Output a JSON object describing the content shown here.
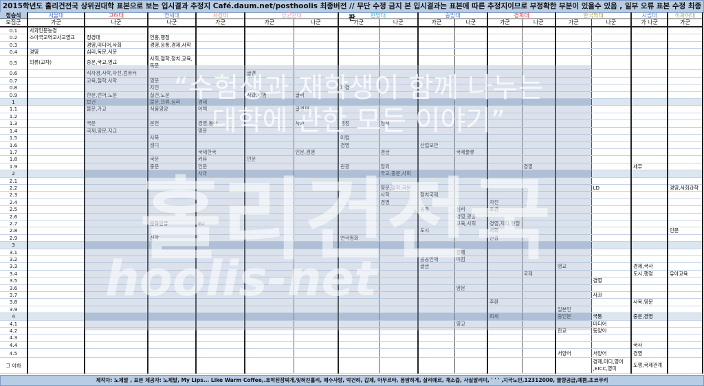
{
  "title": "2015학년도 홀리건전국 상위권대학 표본으로 보는 입시결과 추정지  Café.daum.net/posthoolis 최종버전 // 무단 수정 금지 본 입시결과는 표본에 따른 추정지이므로 부정확한 부분이 있을수 있음 , 일부 오류 표본 수정 최종판",
  "score_header": "정승식",
  "group_header": "모집군",
  "universities": [
    {
      "name": "서울대",
      "color": "#3a6ed0",
      "span": 1
    },
    {
      "name": "고려대",
      "color": "#e02828",
      "span": 1
    },
    {
      "name": "연세대",
      "color": "#5a78b0",
      "span": 1
    },
    {
      "name": "서강대",
      "color": "#f0884c",
      "span": 1
    },
    {
      "name": "성균관대",
      "color": "#f49aa8",
      "span": 2
    },
    {
      "name": "한양대",
      "color": "#40a8d8",
      "span": 2
    },
    {
      "name": "중앙대",
      "color": "#3c74d4",
      "span": 2
    },
    {
      "name": "경희대",
      "color": "#e02828",
      "span": 2
    },
    {
      "name": "한국외대",
      "color": "#a8a048",
      "span": 2
    },
    {
      "name": "시립대",
      "color": "#5a84c4",
      "span": 1
    },
    {
      "name": "이화여대",
      "color": "#88b868",
      "span": 1
    }
  ],
  "columns": [
    {
      "id": "snu",
      "group": "가군"
    },
    {
      "id": "ku",
      "group": "나군"
    },
    {
      "id": "yon",
      "group": "나군"
    },
    {
      "id": "sg",
      "group": "가군"
    },
    {
      "id": "skku_ga",
      "group": "가군"
    },
    {
      "id": "skku_na",
      "group": "나군"
    },
    {
      "id": "hy_ga",
      "group": "가군"
    },
    {
      "id": "hy_na",
      "group": "나군"
    },
    {
      "id": "ca_ga",
      "group": "가군"
    },
    {
      "id": "ca_na",
      "group": "나군"
    },
    {
      "id": "kh_ga",
      "group": "가군"
    },
    {
      "id": "kh_na",
      "group": "나군"
    },
    {
      "id": "hufs_ga",
      "group": "가군"
    },
    {
      "id": "hufs_na",
      "group": "나군"
    },
    {
      "id": "uos",
      "group": "가 나군"
    },
    {
      "id": "ewha",
      "group": "가군"
    }
  ],
  "rows": [
    {
      "label": "0.1",
      "cells": {
        "snu": "사과인문농경"
      }
    },
    {
      "label": "0.2",
      "cells": {
        "snu": "소아국교역교사교영교",
        "ku": "정경대",
        "yon": "언홍,행정"
      }
    },
    {
      "label": "0.3",
      "cells": {
        "ku": "경영,미디어,사회",
        "yon": "경영,응통,경제,사학"
      }
    },
    {
      "label": "0.4",
      "cells": {
        "snu": "경영",
        "ku": "심리,독문,서문"
      }
    },
    {
      "label": "0.5",
      "cells": {
        "snu": "의류(교차)",
        "ku": "중문,국교,영교",
        "yon": "사회,철학,정치,교육, 독문"
      }
    },
    {
      "label": "0.6",
      "cells": {
        "ku": "식자경,사학,자전,컴퓨터",
        "skku_ga": "글경"
      }
    },
    {
      "label": "0.7",
      "cells": {
        "ku": "교육,철학,사학",
        "yon": "영문"
      }
    },
    {
      "label": "0.8",
      "cells": {
        "yon": "자전",
        "hy_ga": "파경"
      }
    },
    {
      "label": "0.9",
      "cells": {
        "ku": "한문,언어,노문",
        "yon": "실건,노문",
        "skku_ga": "사과,경영",
        "skku_na": "글리"
      }
    },
    {
      "label": "1",
      "cells": {
        "ku": "보건",
        "yon": "불문,의류,심리",
        "sg": "경제"
      }
    },
    {
      "label": "1.1",
      "cells": {
        "ku": "불문,가교",
        "yon": "식품영양",
        "sg": "아텍",
        "skku_na": "글경제"
      }
    },
    {
      "label": "1.2",
      "cells": {}
    },
    {
      "label": "1.3",
      "cells": {
        "ku": "국문",
        "yon": "문헌",
        "sg": "경영,동아",
        "skku_na": "사과",
        "hy_ga": "행정",
        "hy_na": "정책"
      }
    },
    {
      "label": "1.4",
      "cells": {
        "ku": "국제,영문,지교",
        "sg": "영문"
      }
    },
    {
      "label": "1.5",
      "cells": {
        "yon": "사복",
        "hy_ga": "미컴"
      }
    },
    {
      "label": "1.6",
      "cells": {
        "yon": "생디",
        "hy_ga": "경영",
        "ca_ga": "산업보안"
      }
    },
    {
      "label": "1.7",
      "cells": {
        "sg": "국제한국",
        "skku_na": "인문,경영",
        "hy_na": "경금",
        "ca_na": "국제물류"
      }
    },
    {
      "label": "1.8",
      "cells": {
        "yon": "국문",
        "sg": "커뮤",
        "skku_ga": "인문"
      }
    },
    {
      "label": "1.9",
      "cells": {
        "yon": "중문",
        "sg": "인문",
        "hy_ga": "관광",
        "hy_na": "정외",
        "kh_na": "경영",
        "uos": "세무"
      }
    },
    {
      "label": "2",
      "cells": {
        "sg": "사과",
        "hy_na": "국교,중문,사회"
      }
    },
    {
      "label": "2.1",
      "cells": {}
    },
    {
      "label": "2.2",
      "cells": {
        "hy_na": "영문,철학,국문",
        "hufs_na": "LD",
        "ewha": "경영,사회과학"
      }
    },
    {
      "label": "2.3",
      "cells": {
        "hy_na": "사학",
        "ca_ga": "정치국제"
      }
    },
    {
      "label": "2.4",
      "cells": {
        "hy_na": "경영",
        "kh_ga": "자전"
      }
    },
    {
      "label": "2.5",
      "cells": {
        "ca_ga": "융통",
        "ca_na": "심리",
        "kh_ga": "호경"
      }
    },
    {
      "label": "2.6",
      "cells": {
        "ca_na": "경영,광홍"
      }
    },
    {
      "label": "2.7",
      "cells": {
        "yon": "문화인류",
        "sg": "EU",
        "ca_na": "교육,사회",
        "kh_ga": "경영,지리,행정"
      }
    },
    {
      "label": "2.8",
      "cells": {
        "ca_ga": "도시",
        "kh_ga": "사회",
        "ewha": "인문"
      }
    },
    {
      "label": "2.9",
      "cells": {
        "yon": "신학",
        "hy_ga": "연극영화",
        "kh_ga": "관광"
      }
    },
    {
      "label": "3",
      "cells": {}
    },
    {
      "label": "3.1",
      "cells": {
        "ca_na": "경제"
      }
    },
    {
      "label": "3.2",
      "cells": {
        "ca_ga": "공공인재",
        "ca_na": "미컴"
      }
    },
    {
      "label": "3.3",
      "cells": {
        "ca_ga": "글금",
        "hufs_ga": "영교",
        "uos": "경제,국사"
      }
    },
    {
      "label": "3.4",
      "cells": {
        "kh_na": "국제",
        "uos": "도시,행정",
        "ewha": "유아교육"
      }
    },
    {
      "label": "3.5",
      "cells": {
        "hufs_na": "경영"
      }
    },
    {
      "label": "3.6",
      "cells": {
        "ca_na": "영문"
      }
    },
    {
      "label": "3.7",
      "cells": {
        "hufs_na": "사과"
      }
    },
    {
      "label": "3.8",
      "cells": {
        "kh_ga": "주환",
        "uos": "사복,영문"
      }
    },
    {
      "label": "3.9",
      "cells": {
        "hufs_ga": "일본언"
      }
    },
    {
      "label": "4",
      "cells": {
        "kh_ga": "회세",
        "hufs_ga": "중언문",
        "hufs_na": "국통",
        "uos": "중문,경영"
      }
    },
    {
      "label": "4.1",
      "cells": {
        "ca_na": "영교",
        "hufs_na": "미디어"
      }
    },
    {
      "label": "4.2",
      "cells": {
        "hufs_ga": "한교",
        "hufs_na": "동양어"
      }
    },
    {
      "label": "4.3",
      "cells": {}
    },
    {
      "label": "4.4",
      "cells": {
        "uos": "국사"
      }
    },
    {
      "label": "4.5",
      "cells": {
        "hufs_ga": "서양어",
        "hufs_na": "서양어",
        "uos": "경영"
      }
    },
    {
      "label": "그 이하",
      "cells": {
        "hufs_na": "경제,미디,영어 ,EICC,영미",
        "uos": "도행,국제관계"
      }
    }
  ],
  "highlight_rows": [
    "1",
    "2",
    "3",
    "4"
  ],
  "watermark": {
    "line1": "“수험생과 재학생이 함께 나누는",
    "line2": "대학에 관한 모든 이야기”",
    "logo": "홀리건전국",
    "site": "hoolis-net"
  },
  "footer": "제작자: 노제발 , 표본 제공자: 노제발, My Lips... Like Warm Coffee,.호박된장찌개,잊혀진홀리, 예수사랑, 박건하, 갑제, 아무르타, 몽땅하게, 살리에르, 채소즙, 사실알리미, ' ' ' ,지극노인,12312000, 물량공급,예쁨,초코쿠키"
}
